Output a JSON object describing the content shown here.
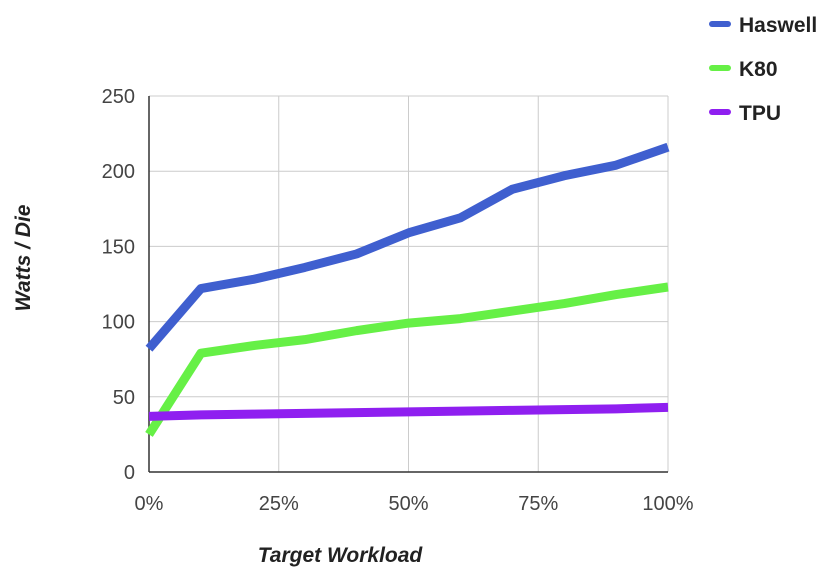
{
  "chart_data": {
    "type": "line",
    "title": "",
    "xlabel": "Target Workload",
    "ylabel": "Watts / Die",
    "x": [
      0,
      10,
      20,
      30,
      40,
      50,
      60,
      70,
      80,
      90,
      100
    ],
    "xlim": [
      0,
      100
    ],
    "xticks": [
      0,
      25,
      50,
      75,
      100
    ],
    "xtick_labels": [
      "0%",
      "25%",
      "50%",
      "75%",
      "100%"
    ],
    "ylim": [
      0,
      250
    ],
    "yticks": [
      0,
      50,
      100,
      150,
      200,
      250
    ],
    "ytick_labels": [
      "0",
      "50",
      "100",
      "150",
      "200",
      "250"
    ],
    "grid": true,
    "legend_position": "top-right",
    "series": [
      {
        "name": "Haswell",
        "color": "#3f5fcf",
        "values": [
          82,
          122,
          128,
          136,
          145,
          159,
          169,
          188,
          197,
          204,
          216
        ]
      },
      {
        "name": "K80",
        "color": "#66f046",
        "values": [
          25,
          79,
          84,
          88,
          94,
          99,
          102,
          107,
          112,
          118,
          123
        ]
      },
      {
        "name": "TPU",
        "color": "#8f1ff0",
        "values": [
          37,
          38,
          38.5,
          39,
          39.5,
          40,
          40.5,
          41,
          41.5,
          42,
          43
        ]
      }
    ]
  }
}
